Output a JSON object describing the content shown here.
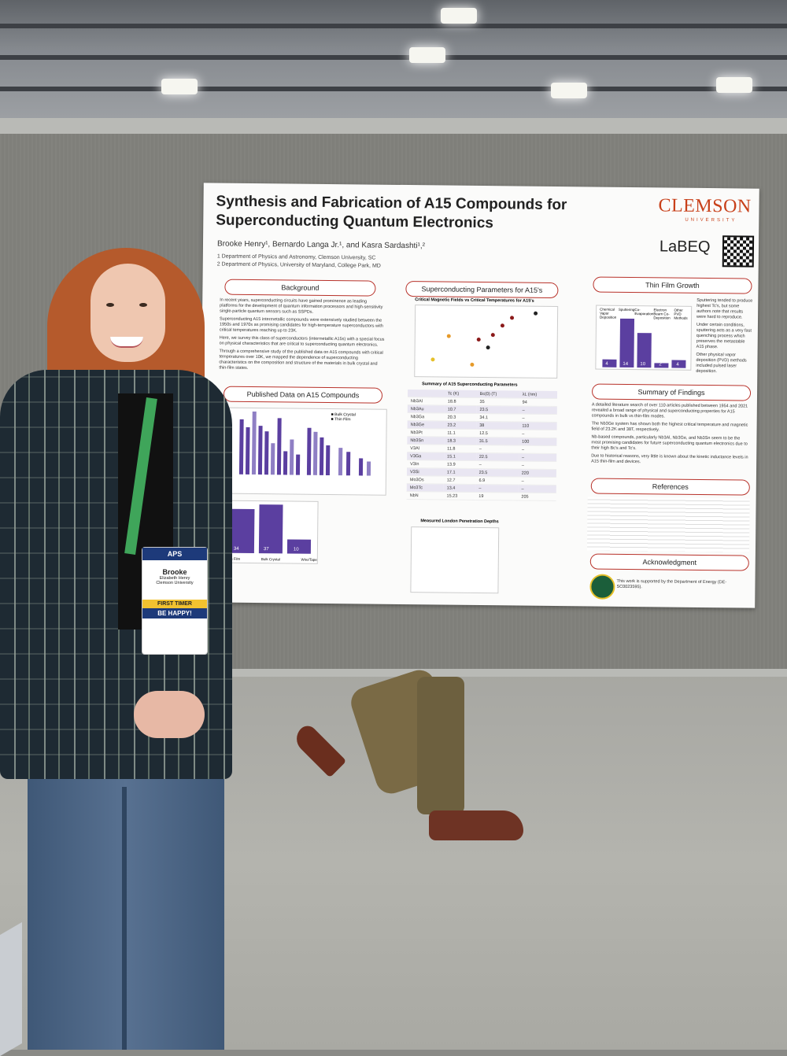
{
  "poster": {
    "title_line1": "Synthesis and Fabrication of A15 Compounds for",
    "title_line2": "Superconducting Quantum Electronics",
    "authors": "Brooke Henry¹, Bernardo Langa Jr.¹, and Kasra Sardashti¹,²",
    "affiliation1": "1 Department of Physics and Astronomy, Clemson University, SC",
    "affiliation2": "2 Department of Physics, University of Maryland, College Park, MD",
    "logo": "CLEMSON",
    "logo_sub": "UNIVERSITY",
    "lab": "LaBEQ",
    "sections": {
      "background": "Background",
      "published": "Published Data on A15 Compounds",
      "params": "Superconducting Parameters for A15's",
      "thin_film": "Thin Film Growth",
      "findings": "Summary of Findings",
      "references": "References",
      "ack": "Acknowledgment"
    },
    "background_bullets": [
      "In recent years, superconducting circuits have gained prominence as leading platforms for the development of quantum information processors and high-sensitivity single-particle quantum sensors such as SSPDs.",
      "Superconducting A15 intermetallic compounds were extensively studied between the 1950s and 1970s as promising candidates for high-temperature superconductors with critical temperatures reaching up to 23K.",
      "Here, we survey this class of superconductors (intermetallic A15s) with a special focus on physical characteristics that are critical to superconducting quantum electronics.",
      "Through a comprehensive study of the published data on A15 compounds with critical temperatures over 10K, we mapped the dependence of superconducting characteristics on the composition and structure of the materials in bulk crystal and thin-film states."
    ],
    "scatter_title": "Critical Magnetic Fields vs Critical Temperatures for A15's",
    "table_title": "Summary of A15 Superconducting Parameters",
    "table_headers": [
      "Tc (K)",
      "Bc(0) (T)",
      "λL (nm)"
    ],
    "table_rows": [
      [
        "Nb3Al",
        "18.8",
        "35",
        "94"
      ],
      [
        "Nb3Au",
        "10.7",
        "23.5",
        "–"
      ],
      [
        "Nb3Ga",
        "20.3",
        "34.1",
        "–"
      ],
      [
        "Nb3Ge",
        "23.2",
        "38",
        "110"
      ],
      [
        "Nb3Pt",
        "11.1",
        "12.5",
        "–"
      ],
      [
        "Nb3Sn",
        "18.3",
        "31.5",
        "100"
      ],
      [
        "V3Al",
        "11.8",
        "–",
        "–"
      ],
      [
        "V3Ga",
        "15.1",
        "22.5",
        "–"
      ],
      [
        "V3In",
        "13.9",
        "–",
        "–"
      ],
      [
        "V3Si",
        "17.1",
        "23.5",
        "220"
      ],
      [
        "Mo3Os",
        "12.7",
        "6.9",
        "–"
      ],
      [
        "Mo3Tc",
        "13.4",
        "–",
        "–"
      ],
      [
        "NbN",
        "15.23",
        "19",
        "205"
      ]
    ],
    "london_title": "Measured London Penetration Depths",
    "bar_legend": [
      "Bulk Crystal",
      "Thin Film"
    ],
    "growth_labels": [
      "Thin Film",
      "Bulk Crystal",
      "Wire/Tape"
    ],
    "growth_values": [
      "34",
      "37",
      "10"
    ],
    "thin_film_labels": [
      "Chemical Vapor Deposition",
      "Sputtering",
      "Co-Evaporation",
      "Electron Beam Co-Deposition",
      "Other PVD Methods"
    ],
    "thin_film_values": [
      "4",
      "14",
      "10",
      "2",
      "4"
    ],
    "thin_film_bullets": [
      "Sputtering tended to produce highest Tc's, but some authors note that results were hard to reproduce.",
      "Under certain conditions, sputtering acts as a very fast quenching process which preserves the metastable A15 phase.",
      "Other physical vapor deposition (PVD) methods included pulsed laser deposition."
    ],
    "findings_bullets": [
      "A detailed literature search of over 110 articles published between 1954 and 2021 revealed a broad range of physical and superconducting properties for A15 compounds in bulk vs thin-film modes.",
      "The Nb3Ge system has shown both the highest critical temperature and magnetic field of 23.2K and 38T, respectively.",
      "Nb-based compounds, particularly Nb3Al, Nb3Ge, and Nb3Sn seem to be the most promising candidates for future superconducting quantum electronics due to their high Bc's and Tc's.",
      "Due to historical reasons, very little is known about the kinetic inductance levels in A15 thin-film and devices."
    ],
    "ack_text": "This work is supported by the Department of Energy (DE-SC0023595)."
  },
  "badge": {
    "org": "APS",
    "name": "Brooke",
    "fullname": "Elizabeth Henry",
    "affiliation": "Clemson University",
    "first_timer": "FIRST TIMER",
    "be_happy": "BE HAPPY!"
  }
}
